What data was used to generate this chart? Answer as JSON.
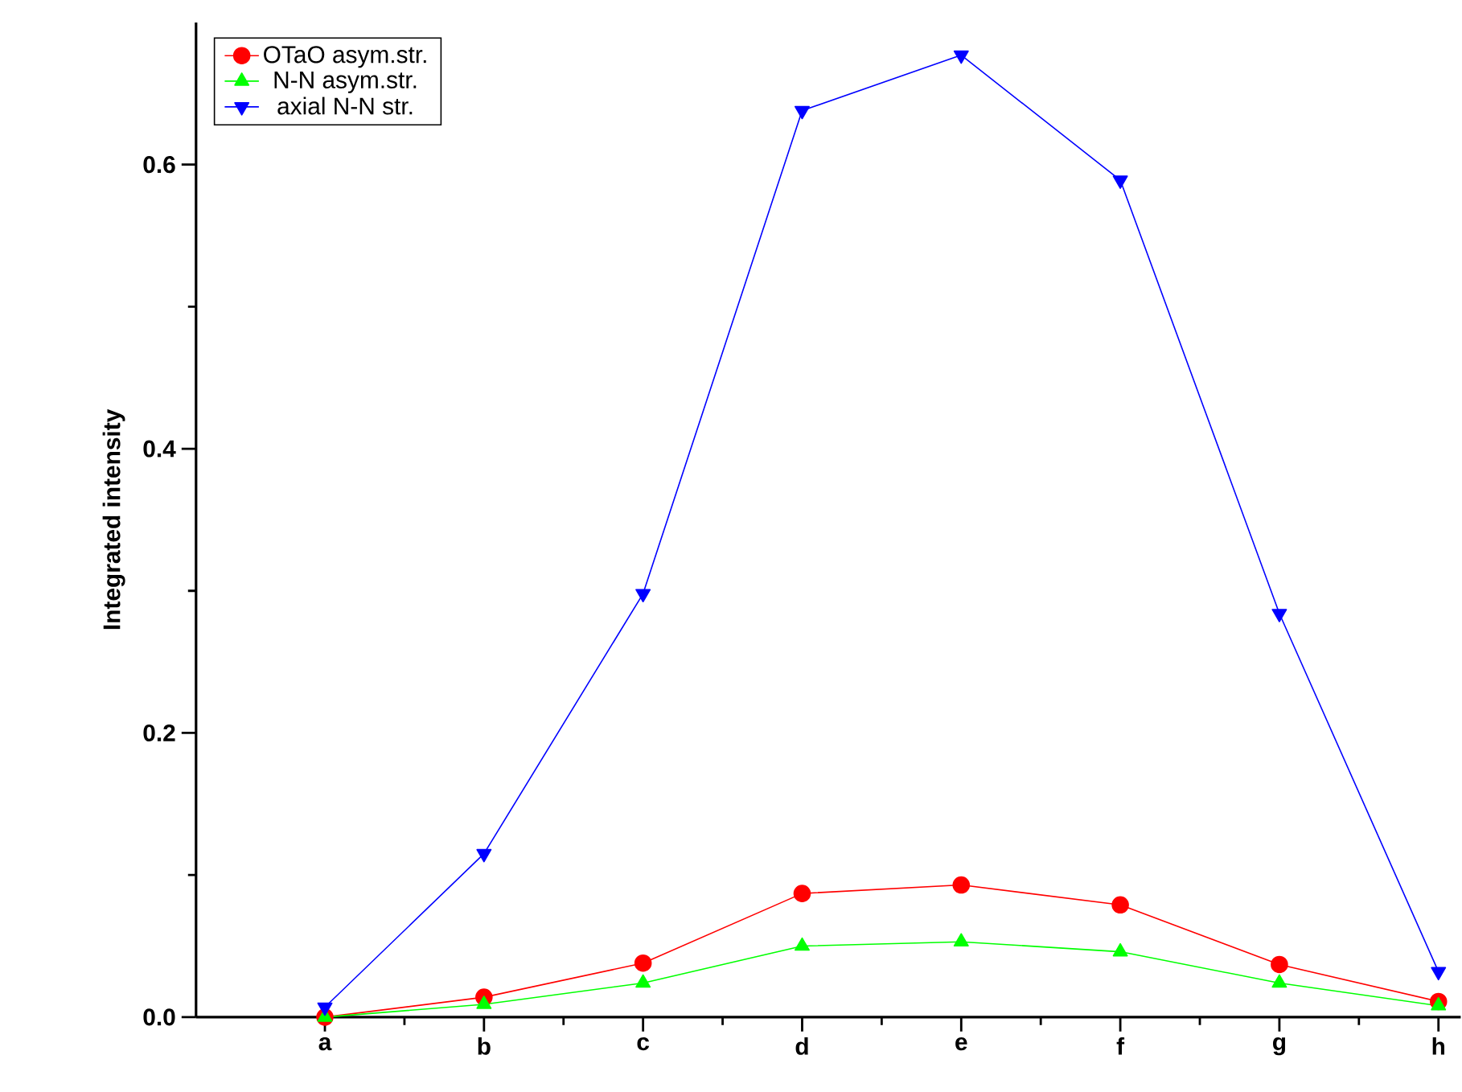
{
  "chart_data": {
    "type": "line",
    "ylabel": "Integrated intensity",
    "categories": [
      "a",
      "b",
      "c",
      "d",
      "e",
      "f",
      "g",
      "h"
    ],
    "series": [
      {
        "name": "OTaO asym.str.",
        "color": "#ff0000",
        "marker": "circle",
        "values": [
          0.0,
          0.014,
          0.038,
          0.087,
          0.093,
          0.079,
          0.037,
          0.011
        ]
      },
      {
        "name": "N-N asym.str.",
        "color": "#00ff00",
        "marker": "triangle",
        "values": [
          0.0,
          0.009,
          0.024,
          0.05,
          0.053,
          0.046,
          0.024,
          0.008
        ]
      },
      {
        "name": "axial N-N str.",
        "color": "#0000ff",
        "marker": "triangle-down",
        "values": [
          0.007,
          0.115,
          0.298,
          0.638,
          0.677,
          0.589,
          0.284,
          0.032
        ]
      }
    ],
    "ylim": [
      0,
      0.7
    ],
    "yticks": [
      {
        "value": 0,
        "label": "0.0"
      },
      {
        "value": 0.2,
        "label": "0.2"
      },
      {
        "value": 0.4,
        "label": "0.4"
      },
      {
        "value": 0.6,
        "label": "0.6"
      }
    ],
    "grid": false,
    "legend": "top left",
    "line_style": "solid"
  }
}
